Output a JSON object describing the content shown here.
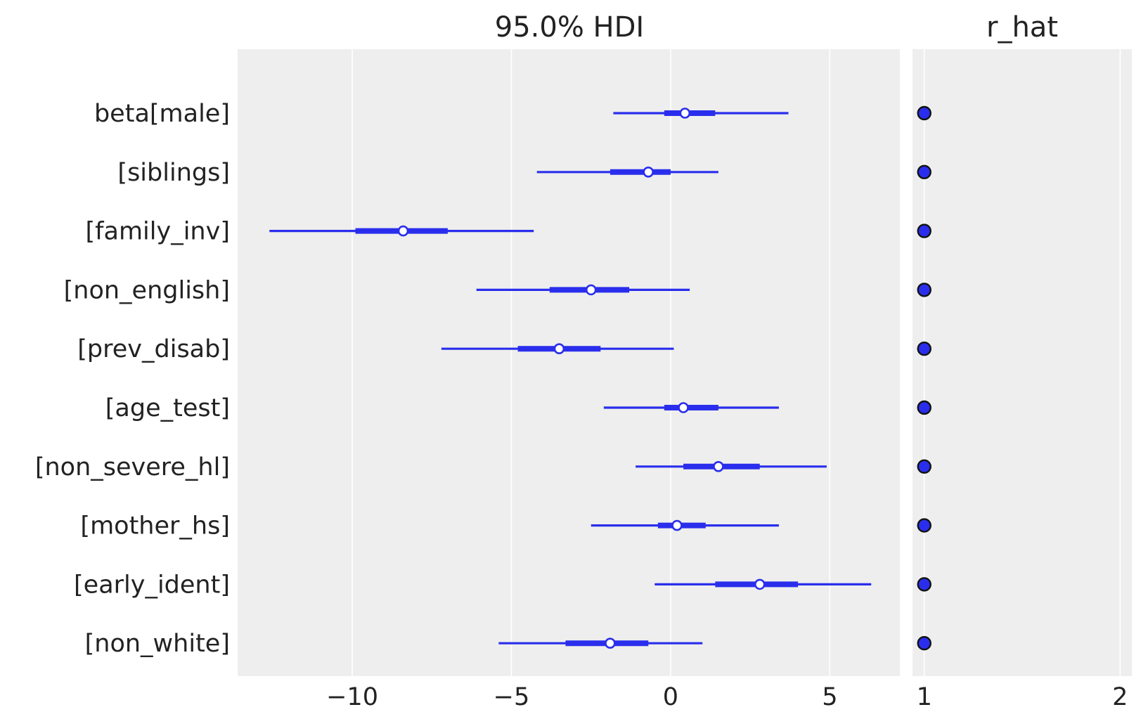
{
  "chart_data": [
    {
      "type": "forest",
      "title": "95.0% HDI",
      "xlim": [
        -13.6,
        7.2
      ],
      "xticks": [
        -10,
        -5,
        0,
        5
      ],
      "xtick_labels": [
        "−10",
        "−5",
        "0",
        "5"
      ],
      "grid": true,
      "line_color": "#2a2eec",
      "background": "#eeeeee",
      "labels": [
        "beta[male]",
        "[siblings]",
        "[family_inv]",
        "[non_english]",
        "[prev_disab]",
        "[age_test]",
        "[non_severe_hl]",
        "[mother_hs]",
        "[early_ident]",
        "[non_white]"
      ],
      "hdi_low": [
        -1.8,
        -4.2,
        -12.6,
        -6.1,
        -7.2,
        -2.1,
        -1.1,
        -2.5,
        -0.5,
        -5.4
      ],
      "hdi_high": [
        3.7,
        1.5,
        -4.3,
        0.6,
        0.1,
        3.4,
        4.9,
        3.4,
        6.3,
        1.0
      ],
      "iqr_low": [
        -0.2,
        -1.9,
        -9.9,
        -3.8,
        -4.8,
        -0.2,
        0.4,
        -0.4,
        1.4,
        -3.3
      ],
      "iqr_high": [
        1.4,
        0.0,
        -7.0,
        -1.3,
        -2.2,
        1.5,
        2.8,
        1.1,
        4.0,
        -0.7
      ],
      "median": [
        0.45,
        -0.7,
        -8.4,
        -2.5,
        -3.5,
        0.4,
        1.5,
        0.2,
        2.8,
        -1.9
      ]
    },
    {
      "type": "scatter",
      "title": "r_hat",
      "xlim": [
        0.94,
        2.06
      ],
      "xticks": [
        1,
        2
      ],
      "xtick_labels": [
        "1",
        "2"
      ],
      "grid": true,
      "marker_color": "#2a2eec",
      "values": [
        1.0,
        1.0,
        1.0,
        1.0,
        1.0,
        1.0,
        1.0,
        1.0,
        1.0,
        1.0
      ]
    }
  ]
}
